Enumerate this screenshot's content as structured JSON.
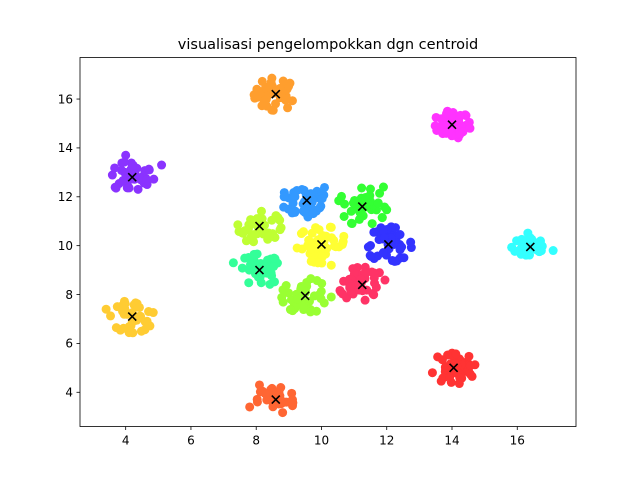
{
  "chart_data": {
    "type": "scatter",
    "title": "visualisasi pengelompokkan dgn centroid",
    "xlabel": "",
    "ylabel": "",
    "xlim": [
      2.6,
      17.8
    ],
    "ylim": [
      2.6,
      17.7
    ],
    "xticks": [
      4,
      6,
      8,
      10,
      12,
      14,
      16
    ],
    "yticks": [
      4,
      6,
      8,
      10,
      12,
      14,
      16
    ],
    "grid": false,
    "legend": "none",
    "centroid_marker": "x",
    "clusters": [
      {
        "color": "#ff9e2e",
        "centroid": [
          8.6,
          16.2
        ],
        "spread": 0.35,
        "points": 40
      },
      {
        "color": "#ff33ff",
        "centroid": [
          14.0,
          14.95
        ],
        "spread": 0.3,
        "points": 40
      },
      {
        "color": "#8a33ff",
        "centroid": [
          4.2,
          12.8
        ],
        "spread": 0.35,
        "points": 40,
        "outliers": [
          [
            5.1,
            13.3
          ],
          [
            4.0,
            13.7
          ]
        ]
      },
      {
        "color": "#3399ff",
        "centroid": [
          9.55,
          11.85
        ],
        "spread": 0.4,
        "points": 45
      },
      {
        "color": "#33ff33",
        "centroid": [
          11.25,
          11.6
        ],
        "spread": 0.4,
        "points": 40,
        "outliers": [
          [
            11.9,
            12.4
          ]
        ]
      },
      {
        "color": "#bfff33",
        "centroid": [
          8.1,
          10.8
        ],
        "spread": 0.35,
        "points": 40,
        "outliers": [
          [
            7.7,
            10.2
          ]
        ]
      },
      {
        "color": "#ffff33",
        "centroid": [
          10.0,
          10.05
        ],
        "spread": 0.4,
        "points": 45,
        "outliers": [
          [
            10.3,
            9.2
          ]
        ]
      },
      {
        "color": "#3333ff",
        "centroid": [
          12.05,
          10.05
        ],
        "spread": 0.38,
        "points": 45
      },
      {
        "color": "#33ffff",
        "centroid": [
          16.4,
          9.95
        ],
        "spread": 0.3,
        "points": 40,
        "outliers": [
          [
            17.1,
            9.8
          ]
        ]
      },
      {
        "color": "#33ff99",
        "centroid": [
          8.1,
          9.0
        ],
        "spread": 0.35,
        "points": 40,
        "outliers": [
          [
            7.3,
            9.3
          ]
        ]
      },
      {
        "color": "#ff3366",
        "centroid": [
          11.25,
          8.4
        ],
        "spread": 0.38,
        "points": 45
      },
      {
        "color": "#99ff33",
        "centroid": [
          9.5,
          7.95
        ],
        "spread": 0.38,
        "points": 40,
        "outliers": [
          [
            10.3,
            7.9
          ]
        ]
      },
      {
        "color": "#ffcc33",
        "centroid": [
          4.2,
          7.1
        ],
        "spread": 0.35,
        "points": 40,
        "outliers": [
          [
            3.4,
            7.4
          ]
        ]
      },
      {
        "color": "#ff3333",
        "centroid": [
          14.05,
          5.0
        ],
        "spread": 0.35,
        "points": 45,
        "outliers": [
          [
            13.4,
            4.8
          ]
        ]
      },
      {
        "color": "#ff6633",
        "centroid": [
          8.6,
          3.7
        ],
        "spread": 0.3,
        "points": 40,
        "outliers": [
          [
            7.8,
            3.4
          ],
          [
            8.1,
            4.3
          ]
        ]
      }
    ]
  }
}
